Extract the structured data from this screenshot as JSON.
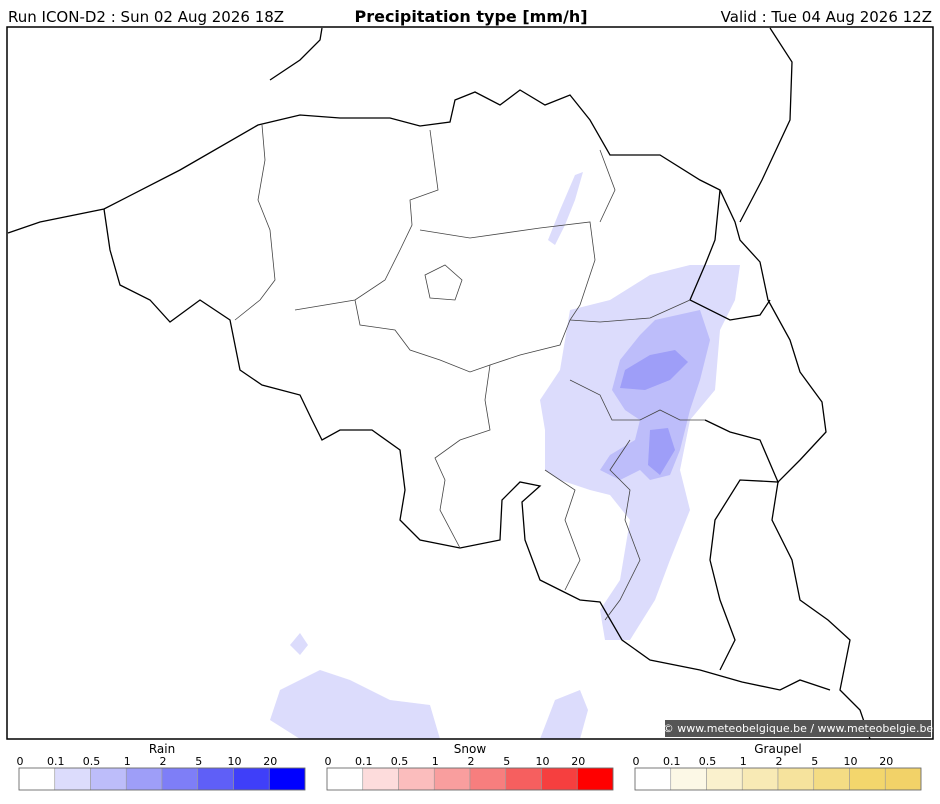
{
  "header": {
    "run": "Run ICON-D2 : Sun 02 Aug 2026 18Z",
    "title": "Precipitation type [mm/h]",
    "valid": "Valid : Tue 04 Aug 2026 12Z"
  },
  "map": {
    "credit": "© www.meteobelgique.be / www.meteobelgie.be"
  },
  "legends": [
    {
      "title": "Rain",
      "ticks": [
        0,
        0.1,
        0.5,
        1,
        2,
        5,
        10,
        20
      ],
      "colors": [
        "#ffffff",
        "#dcdcfc",
        "#bdbdfa",
        "#9e9ef8",
        "#7e7ef7",
        "#5f5ff7",
        "#3f3ff9",
        "#0000ff"
      ]
    },
    {
      "title": "Snow",
      "ticks": [
        0,
        0.1,
        0.5,
        1,
        2,
        5,
        10,
        20
      ],
      "colors": [
        "#ffffff",
        "#fddcdc",
        "#fbbdbd",
        "#f99e9e",
        "#f77e7e",
        "#f65f5f",
        "#f63f3f",
        "#ff0000"
      ]
    },
    {
      "title": "Graupel",
      "ticks": [
        0,
        0.1,
        0.5,
        1,
        2,
        5,
        10,
        20
      ],
      "colors": [
        "#ffffff",
        "#fcf8e6",
        "#faf1cd",
        "#f8eab5",
        "#f6e39d",
        "#f4dc84",
        "#f3d66c",
        "#f2d268"
      ]
    }
  ]
}
